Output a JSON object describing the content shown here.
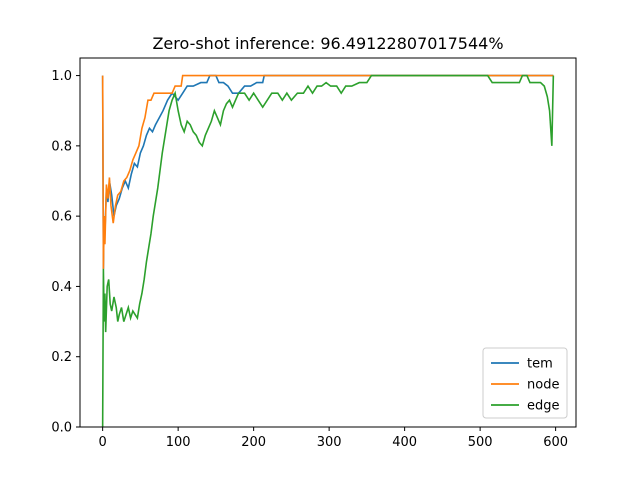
{
  "chart_data": {
    "type": "line",
    "title": "Zero-shot inference: 96.49122807017544%",
    "xlabel": "",
    "ylabel": "",
    "xlim": [
      -30,
      627
    ],
    "ylim": [
      0,
      1.05
    ],
    "xticks": [
      0,
      100,
      200,
      300,
      400,
      500,
      600
    ],
    "yticks": [
      0.0,
      0.2,
      0.4,
      0.6,
      0.8,
      1.0
    ],
    "legend_position": "bottom-right",
    "grid": false,
    "series": [
      {
        "name": "tem",
        "color": "#1f77b4",
        "points": [
          [
            0,
            1.0
          ],
          [
            1,
            0.45
          ],
          [
            2,
            0.6
          ],
          [
            3,
            0.55
          ],
          [
            5,
            0.68
          ],
          [
            7,
            0.64
          ],
          [
            9,
            0.7
          ],
          [
            12,
            0.66
          ],
          [
            15,
            0.6
          ],
          [
            18,
            0.63
          ],
          [
            22,
            0.65
          ],
          [
            26,
            0.68
          ],
          [
            30,
            0.7
          ],
          [
            34,
            0.68
          ],
          [
            38,
            0.72
          ],
          [
            42,
            0.75
          ],
          [
            46,
            0.74
          ],
          [
            50,
            0.78
          ],
          [
            54,
            0.8
          ],
          [
            58,
            0.83
          ],
          [
            62,
            0.85
          ],
          [
            66,
            0.84
          ],
          [
            70,
            0.86
          ],
          [
            75,
            0.88
          ],
          [
            80,
            0.9
          ],
          [
            86,
            0.93
          ],
          [
            92,
            0.95
          ],
          [
            100,
            0.93
          ],
          [
            106,
            0.95
          ],
          [
            112,
            0.97
          ],
          [
            120,
            0.97
          ],
          [
            130,
            0.98
          ],
          [
            138,
            0.98
          ],
          [
            142,
            1.0
          ],
          [
            150,
            1.0
          ],
          [
            154,
            0.98
          ],
          [
            160,
            0.98
          ],
          [
            166,
            0.97
          ],
          [
            172,
            0.95
          ],
          [
            180,
            0.95
          ],
          [
            188,
            0.97
          ],
          [
            196,
            0.97
          ],
          [
            204,
            0.98
          ],
          [
            212,
            0.98
          ],
          [
            214,
            1.0
          ],
          [
            300,
            1.0
          ],
          [
            400,
            1.0
          ],
          [
            500,
            1.0
          ],
          [
            597,
            1.0
          ]
        ]
      },
      {
        "name": "node",
        "color": "#ff7f0e",
        "points": [
          [
            0,
            1.0
          ],
          [
            1,
            0.45
          ],
          [
            2,
            0.6
          ],
          [
            3,
            0.52
          ],
          [
            5,
            0.69
          ],
          [
            7,
            0.65
          ],
          [
            9,
            0.71
          ],
          [
            11,
            0.63
          ],
          [
            14,
            0.58
          ],
          [
            17,
            0.63
          ],
          [
            20,
            0.66
          ],
          [
            24,
            0.67
          ],
          [
            28,
            0.7
          ],
          [
            32,
            0.71
          ],
          [
            36,
            0.73
          ],
          [
            40,
            0.76
          ],
          [
            44,
            0.78
          ],
          [
            48,
            0.8
          ],
          [
            52,
            0.85
          ],
          [
            56,
            0.88
          ],
          [
            60,
            0.93
          ],
          [
            64,
            0.93
          ],
          [
            68,
            0.95
          ],
          [
            80,
            0.95
          ],
          [
            92,
            0.95
          ],
          [
            96,
            0.97
          ],
          [
            104,
            0.97
          ],
          [
            106,
            1.0
          ],
          [
            200,
            1.0
          ],
          [
            300,
            1.0
          ],
          [
            400,
            1.0
          ],
          [
            500,
            1.0
          ],
          [
            597,
            1.0
          ]
        ]
      },
      {
        "name": "edge",
        "color": "#2ca02c",
        "points": [
          [
            0,
            0.0
          ],
          [
            1,
            0.45
          ],
          [
            2,
            0.3
          ],
          [
            3,
            0.38
          ],
          [
            4,
            0.27
          ],
          [
            6,
            0.4
          ],
          [
            8,
            0.42
          ],
          [
            10,
            0.35
          ],
          [
            12,
            0.33
          ],
          [
            15,
            0.37
          ],
          [
            18,
            0.34
          ],
          [
            20,
            0.3
          ],
          [
            22,
            0.32
          ],
          [
            25,
            0.34
          ],
          [
            28,
            0.3
          ],
          [
            31,
            0.32
          ],
          [
            34,
            0.34
          ],
          [
            37,
            0.31
          ],
          [
            40,
            0.33
          ],
          [
            43,
            0.32
          ],
          [
            46,
            0.31
          ],
          [
            49,
            0.35
          ],
          [
            52,
            0.38
          ],
          [
            55,
            0.42
          ],
          [
            58,
            0.47
          ],
          [
            61,
            0.51
          ],
          [
            64,
            0.55
          ],
          [
            67,
            0.6
          ],
          [
            70,
            0.64
          ],
          [
            73,
            0.68
          ],
          [
            76,
            0.73
          ],
          [
            79,
            0.78
          ],
          [
            82,
            0.82
          ],
          [
            85,
            0.86
          ],
          [
            88,
            0.9
          ],
          [
            92,
            0.93
          ],
          [
            96,
            0.95
          ],
          [
            100,
            0.9
          ],
          [
            104,
            0.86
          ],
          [
            108,
            0.84
          ],
          [
            112,
            0.87
          ],
          [
            116,
            0.86
          ],
          [
            120,
            0.84
          ],
          [
            124,
            0.83
          ],
          [
            128,
            0.81
          ],
          [
            132,
            0.8
          ],
          [
            136,
            0.83
          ],
          [
            140,
            0.85
          ],
          [
            144,
            0.87
          ],
          [
            148,
            0.9
          ],
          [
            152,
            0.88
          ],
          [
            156,
            0.86
          ],
          [
            160,
            0.9
          ],
          [
            164,
            0.92
          ],
          [
            168,
            0.93
          ],
          [
            172,
            0.91
          ],
          [
            176,
            0.93
          ],
          [
            180,
            0.95
          ],
          [
            188,
            0.95
          ],
          [
            194,
            0.93
          ],
          [
            200,
            0.95
          ],
          [
            206,
            0.93
          ],
          [
            212,
            0.91
          ],
          [
            218,
            0.93
          ],
          [
            224,
            0.95
          ],
          [
            232,
            0.95
          ],
          [
            238,
            0.93
          ],
          [
            244,
            0.95
          ],
          [
            250,
            0.93
          ],
          [
            258,
            0.95
          ],
          [
            266,
            0.95
          ],
          [
            272,
            0.97
          ],
          [
            278,
            0.95
          ],
          [
            284,
            0.97
          ],
          [
            290,
            0.97
          ],
          [
            296,
            0.98
          ],
          [
            302,
            0.97
          ],
          [
            310,
            0.97
          ],
          [
            316,
            0.95
          ],
          [
            322,
            0.97
          ],
          [
            330,
            0.97
          ],
          [
            340,
            0.98
          ],
          [
            350,
            0.98
          ],
          [
            356,
            1.0
          ],
          [
            400,
            1.0
          ],
          [
            450,
            1.0
          ],
          [
            510,
            1.0
          ],
          [
            516,
            0.98
          ],
          [
            540,
            0.98
          ],
          [
            552,
            0.98
          ],
          [
            556,
            1.0
          ],
          [
            562,
            1.0
          ],
          [
            566,
            0.98
          ],
          [
            580,
            0.98
          ],
          [
            585,
            0.97
          ],
          [
            589,
            0.94
          ],
          [
            592,
            0.9
          ],
          [
            595,
            0.8
          ],
          [
            597,
            1.0
          ]
        ]
      }
    ]
  }
}
